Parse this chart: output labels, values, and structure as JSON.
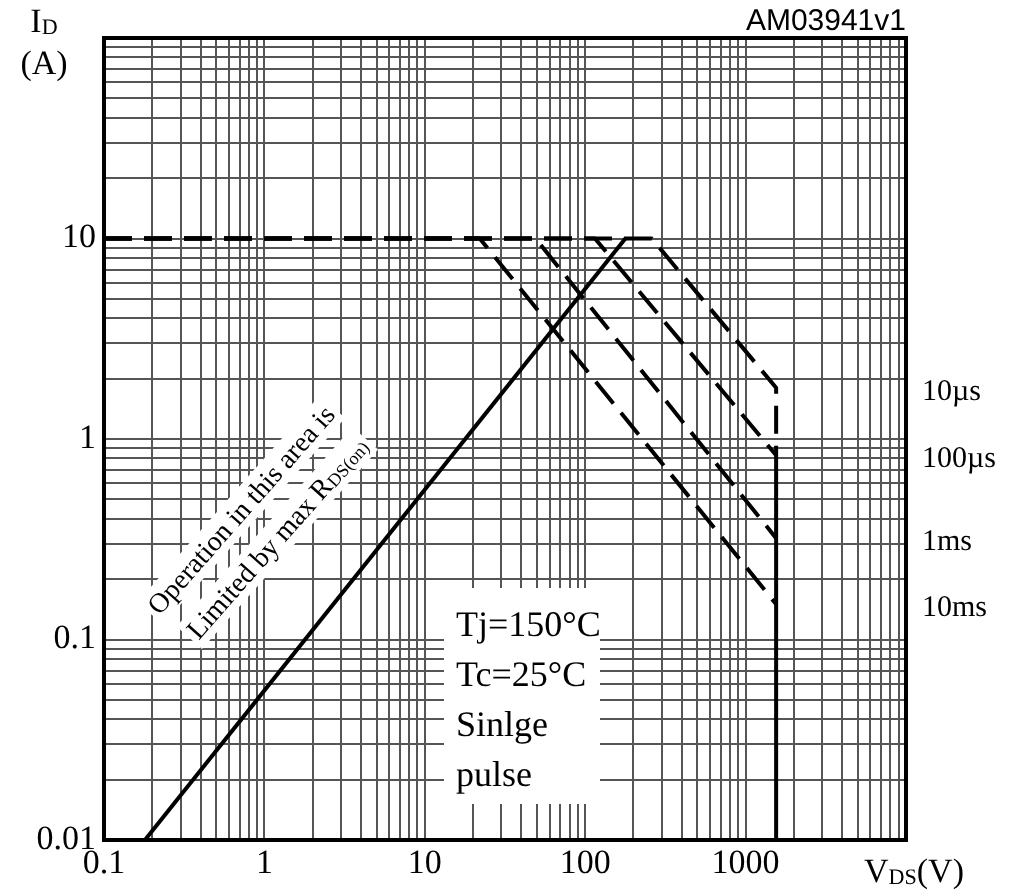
{
  "chart_data": {
    "type": "line",
    "xlabel": "V$_{DS}$(V)",
    "ylabel": "I$_{D}$ (A)",
    "annotations": [
      "AM03941v1",
      "Operation in this area is",
      "Limited by max R$_{DS(on)}$",
      "Tj=150°C",
      "Tc=25°C",
      "Sinlge pulse"
    ],
    "series": [
      {
        "color": "#000000",
        "line_style": "solid",
        "x": [
          0.18,
          178
        ],
        "values": [
          0.01,
          10
        ]
      },
      {
        "name": "10µs",
        "color": "#000000",
        "line_style": "dashed",
        "x": [
          0.1,
          260,
          1550,
          1550
        ],
        "values": [
          10,
          10,
          1.8,
          0.85
        ]
      },
      {
        "name": "100µs",
        "color": "#000000",
        "line_style": "dashed",
        "x": [
          0.1,
          115,
          1550
        ],
        "values": [
          10,
          10,
          0.83
        ]
      },
      {
        "name": "1ms",
        "color": "#000000",
        "line_style": "dashed",
        "x": [
          0.1,
          49,
          1550
        ],
        "values": [
          10,
          10,
          0.32
        ]
      },
      {
        "name": "10ms",
        "color": "#000000",
        "line_style": "dashed",
        "x": [
          0.1,
          22,
          1550
        ],
        "values": [
          10,
          10,
          0.15
        ]
      },
      {
        "color": "#000000",
        "line_style": "solid",
        "x": [
          1550,
          1550
        ],
        "values": [
          0.85,
          0.01
        ]
      }
    ],
    "log": "xy",
    "grid": true,
    "legend": false,
    "marker": "none",
    "xlim": [
      0.1,
      10000
    ],
    "ylim": [
      0.01,
      100
    ],
    "xticks": [
      0.1,
      {
        "value": 0.2,
        "label": null
      },
      {
        "value": 0.3,
        "label": null
      },
      {
        "value": 0.4,
        "label": null
      },
      {
        "value": 0.5,
        "label": null
      },
      {
        "value": 0.6,
        "label": null
      },
      {
        "value": 0.7,
        "label": null
      },
      {
        "value": 0.8,
        "label": null
      },
      {
        "value": 0.9,
        "label": null
      },
      1,
      {
        "value": 2,
        "label": null
      },
      {
        "value": 3,
        "label": null
      },
      {
        "value": 4,
        "label": null
      },
      {
        "value": 5,
        "label": null
      },
      {
        "value": 6,
        "label": null
      },
      {
        "value": 7,
        "label": null
      },
      {
        "value": 8,
        "label": null
      },
      {
        "value": 9,
        "label": null
      },
      10,
      {
        "value": 20,
        "label": null
      },
      {
        "value": 30,
        "label": null
      },
      {
        "value": 40,
        "label": null
      },
      {
        "value": 50,
        "label": null
      },
      {
        "value": 60,
        "label": null
      },
      {
        "value": 70,
        "label": null
      },
      {
        "value": 80,
        "label": null
      },
      {
        "value": 90,
        "label": null
      },
      100,
      {
        "value": 200,
        "label": null
      },
      {
        "value": 300,
        "label": null
      },
      {
        "value": 400,
        "label": null
      },
      {
        "value": 500,
        "label": null
      },
      {
        "value": 600,
        "label": null
      },
      {
        "value": 700,
        "label": null
      },
      {
        "value": 800,
        "label": null
      },
      {
        "value": 900,
        "label": null
      },
      1000,
      {
        "value": 2000,
        "label": null
      },
      {
        "value": 3000,
        "label": null
      },
      {
        "value": 4000,
        "label": null
      },
      {
        "value": 5000,
        "label": null
      },
      {
        "value": 6000,
        "label": null
      },
      {
        "value": 7000,
        "label": null
      },
      {
        "value": 8000,
        "label": null
      },
      {
        "value": 9000,
        "label": null
      },
      {
        "value": 10000,
        "label": null
      }
    ],
    "yticks": [
      0.01,
      {
        "value": 0.02,
        "label": null
      },
      {
        "value": 0.03,
        "label": null
      },
      {
        "value": 0.04,
        "label": null
      },
      {
        "value": 0.05,
        "label": null
      },
      {
        "value": 0.06,
        "label": null
      },
      {
        "value": 0.07,
        "label": null
      },
      {
        "value": 0.08,
        "label": null
      },
      {
        "value": 0.09,
        "label": null
      },
      0.1,
      {
        "value": 0.2,
        "label": null
      },
      {
        "value": 0.3,
        "label": null
      },
      {
        "value": 0.4,
        "label": null
      },
      {
        "value": 0.5,
        "label": null
      },
      {
        "value": 0.6,
        "label": null
      },
      {
        "value": 0.7,
        "label": null
      },
      {
        "value": 0.8,
        "label": null
      },
      {
        "value": 0.9,
        "label": null
      },
      1,
      {
        "value": 2,
        "label": null
      },
      {
        "value": 3,
        "label": null
      },
      {
        "value": 4,
        "label": null
      },
      {
        "value": 5,
        "label": null
      },
      {
        "value": 6,
        "label": null
      },
      {
        "value": 7,
        "label": null
      },
      {
        "value": 8,
        "label": null
      },
      {
        "value": 9,
        "label": null
      },
      10,
      {
        "value": 20,
        "label": null
      },
      {
        "value": 30,
        "label": null
      },
      {
        "value": 40,
        "label": null
      },
      {
        "value": 50,
        "label": null
      },
      {
        "value": 60,
        "label": null
      },
      {
        "value": 70,
        "label": null
      },
      {
        "value": 80,
        "label": null
      },
      {
        "value": 90,
        "label": null
      },
      {
        "value": 100,
        "label": null
      }
    ]
  }
}
